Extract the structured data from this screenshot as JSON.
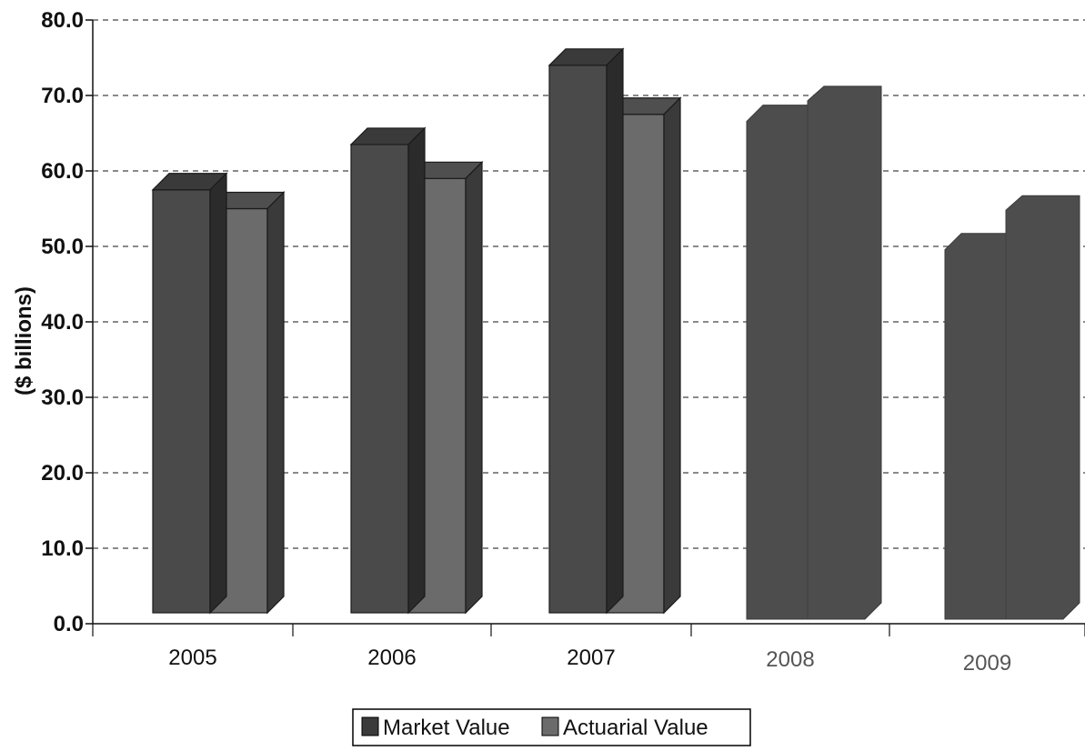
{
  "chart_data": {
    "type": "bar",
    "categories": [
      "2005",
      "2006",
      "2007",
      "2008",
      "2009"
    ],
    "series": [
      {
        "name": "Market Value",
        "values": [
          57.5,
          63.5,
          74.0,
          68.0,
          51.0
        ]
      },
      {
        "name": "Actuarial Value",
        "values": [
          55.0,
          59.0,
          67.5,
          70.5,
          56.0
        ]
      }
    ],
    "xlabel": "",
    "ylabel": "($ billions)",
    "ylim": [
      0,
      80
    ],
    "yticks": [
      "0.0",
      "10.0",
      "20.0",
      "30.0",
      "40.0",
      "50.0",
      "60.0",
      "70.0",
      "80.0"
    ],
    "grid": true,
    "legend_position": "bottom",
    "colors": {
      "market_front": "#4a4a4a",
      "market_top": "#3a3a3a",
      "market_side": "#2b2b2b",
      "actuarial_front": "#6b6b6b",
      "actuarial_top": "#4f4f4f",
      "actuarial_side": "#3a3a3a",
      "projected_front": "#4d4d4d",
      "projected_side": "#404040"
    }
  }
}
